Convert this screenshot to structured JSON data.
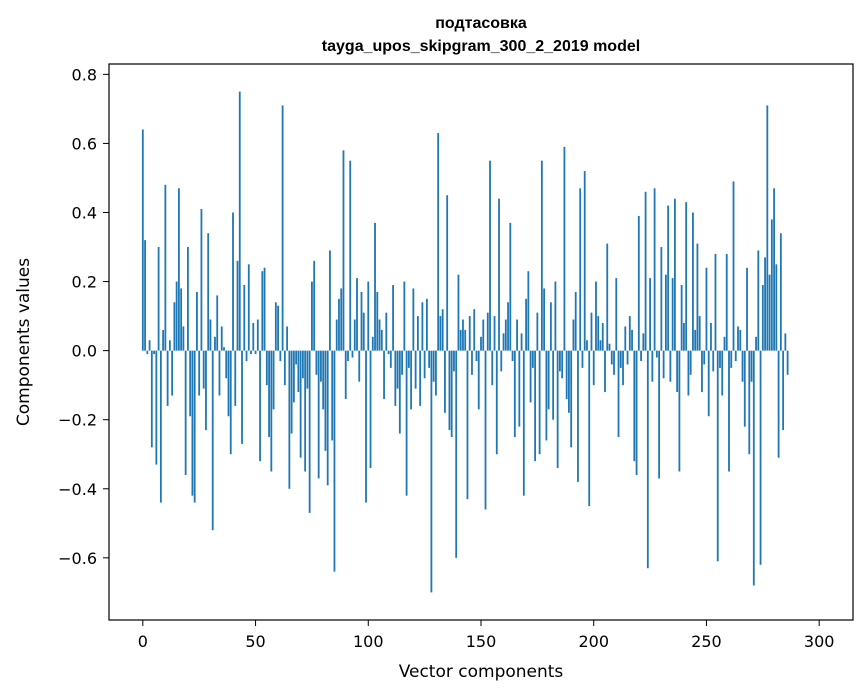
{
  "chart_data": {
    "type": "bar",
    "title_line1": "подтасовка",
    "title_line2": "tayga_upos_skipgram_300_2_2019 model",
    "xlabel": "Vector components",
    "ylabel": "Components values",
    "xlim": [
      -15,
      315
    ],
    "ylim": [
      -0.78,
      0.83
    ],
    "xticks": [
      0,
      50,
      100,
      150,
      200,
      250,
      300
    ],
    "xtick_labels": [
      "0",
      "50",
      "100",
      "150",
      "200",
      "250",
      "300"
    ],
    "yticks": [
      -0.6,
      -0.4,
      -0.2,
      0.0,
      0.2,
      0.4,
      0.6,
      0.8
    ],
    "ytick_labels": [
      "−0.6",
      "−0.4",
      "−0.2",
      "0.0",
      "0.2",
      "0.4",
      "0.6",
      "0.8"
    ],
    "grid": false,
    "bar_color": "#1f77b4",
    "values": [
      0.64,
      0.32,
      -0.01,
      0.03,
      -0.28,
      -0.01,
      -0.33,
      0.3,
      -0.44,
      0.06,
      0.48,
      -0.16,
      0.03,
      -0.13,
      0.14,
      0.2,
      0.47,
      0.18,
      0.07,
      -0.36,
      0.3,
      -0.19,
      -0.42,
      -0.44,
      0.17,
      -0.13,
      0.41,
      -0.11,
      -0.23,
      0.34,
      0.09,
      -0.52,
      0.04,
      0.16,
      -0.13,
      0.07,
      0.01,
      -0.08,
      -0.19,
      -0.3,
      0.4,
      -0.16,
      0.26,
      0.75,
      -0.27,
      0.19,
      -0.03,
      0.25,
      -0.01,
      0.08,
      -0.01,
      0.09,
      -0.32,
      0.23,
      0.24,
      -0.1,
      -0.25,
      -0.35,
      -0.17,
      0.14,
      0.13,
      -0.03,
      0.71,
      -0.1,
      0.07,
      -0.4,
      -0.24,
      -0.15,
      -0.04,
      -0.12,
      -0.31,
      -0.08,
      -0.35,
      -0.11,
      -0.47,
      0.2,
      0.26,
      -0.07,
      -0.37,
      -0.09,
      -0.17,
      -0.29,
      -0.39,
      0.29,
      -0.26,
      -0.64,
      0.09,
      0.15,
      0.18,
      0.58,
      -0.14,
      -0.03,
      0.55,
      -0.02,
      0.09,
      0.21,
      -0.09,
      0.17,
      0.11,
      -0.44,
      0.2,
      -0.34,
      0.04,
      0.37,
      0.17,
      0.09,
      0.06,
      -0.14,
      0.11,
      -0.01,
      -0.05,
      0.19,
      -0.16,
      -0.11,
      -0.24,
      -0.07,
      0.2,
      -0.42,
      -0.05,
      -0.17,
      0.18,
      -0.11,
      0.1,
      -0.16,
      0.14,
      -0.08,
      0.15,
      -0.05,
      -0.7,
      -0.09,
      -0.13,
      0.63,
      0.1,
      0.12,
      -0.18,
      0.45,
      -0.23,
      -0.25,
      -0.06,
      -0.6,
      0.22,
      0.06,
      0.09,
      0.06,
      -0.43,
      0.1,
      -0.07,
      0.12,
      -0.03,
      -0.17,
      0.04,
      0.09,
      -0.46,
      0.11,
      0.55,
      -0.1,
      0.1,
      -0.3,
      0.44,
      -0.06,
      0.05,
      0.09,
      0.14,
      0.37,
      -0.03,
      -0.25,
      0.09,
      -0.22,
      0.05,
      -0.42,
      0.15,
      0.23,
      -0.15,
      -0.05,
      -0.32,
      0.11,
      -0.3,
      0.55,
      0.18,
      -0.26,
      -0.17,
      0.14,
      -0.2,
      0.2,
      -0.34,
      -0.06,
      -0.08,
      0.59,
      -0.14,
      -0.18,
      -0.28,
      0.09,
      0.17,
      -0.38,
      0.47,
      -0.05,
      0.52,
      0.03,
      -0.45,
      0.11,
      -0.1,
      0.2,
      0.1,
      0.03,
      0.08,
      -0.12,
      0.31,
      0.02,
      -0.04,
      -0.07,
      0.21,
      -0.25,
      -0.05,
      -0.1,
      0.07,
      -0.04,
      0.1,
      0.06,
      -0.32,
      -0.36,
      0.39,
      -0.03,
      0.05,
      0.46,
      -0.63,
      0.21,
      -0.09,
      0.47,
      -0.02,
      -0.37,
      0.3,
      -0.08,
      0.22,
      0.42,
      -0.09,
      0.21,
      0.44,
      -0.12,
      -0.35,
      0.19,
      0.08,
      0.43,
      -0.13,
      -0.07,
      0.4,
      0.06,
      0.31,
      0.1,
      -0.12,
      -0.04,
      0.24,
      -0.19,
      0.08,
      -0.06,
      0.28,
      -0.61,
      -0.05,
      -0.13,
      0.04,
      0.28,
      -0.35,
      -0.05,
      0.49,
      -0.03,
      0.07,
      0.06,
      -0.09,
      -0.22,
      0.24,
      -0.3,
      -0.09,
      -0.68,
      0.04,
      0.29,
      -0.62,
      0.19,
      0.27,
      0.71,
      0.22,
      0.38,
      0.47,
      0.25,
      -0.31,
      0.34,
      -0.23,
      0.05,
      -0.07
    ]
  }
}
